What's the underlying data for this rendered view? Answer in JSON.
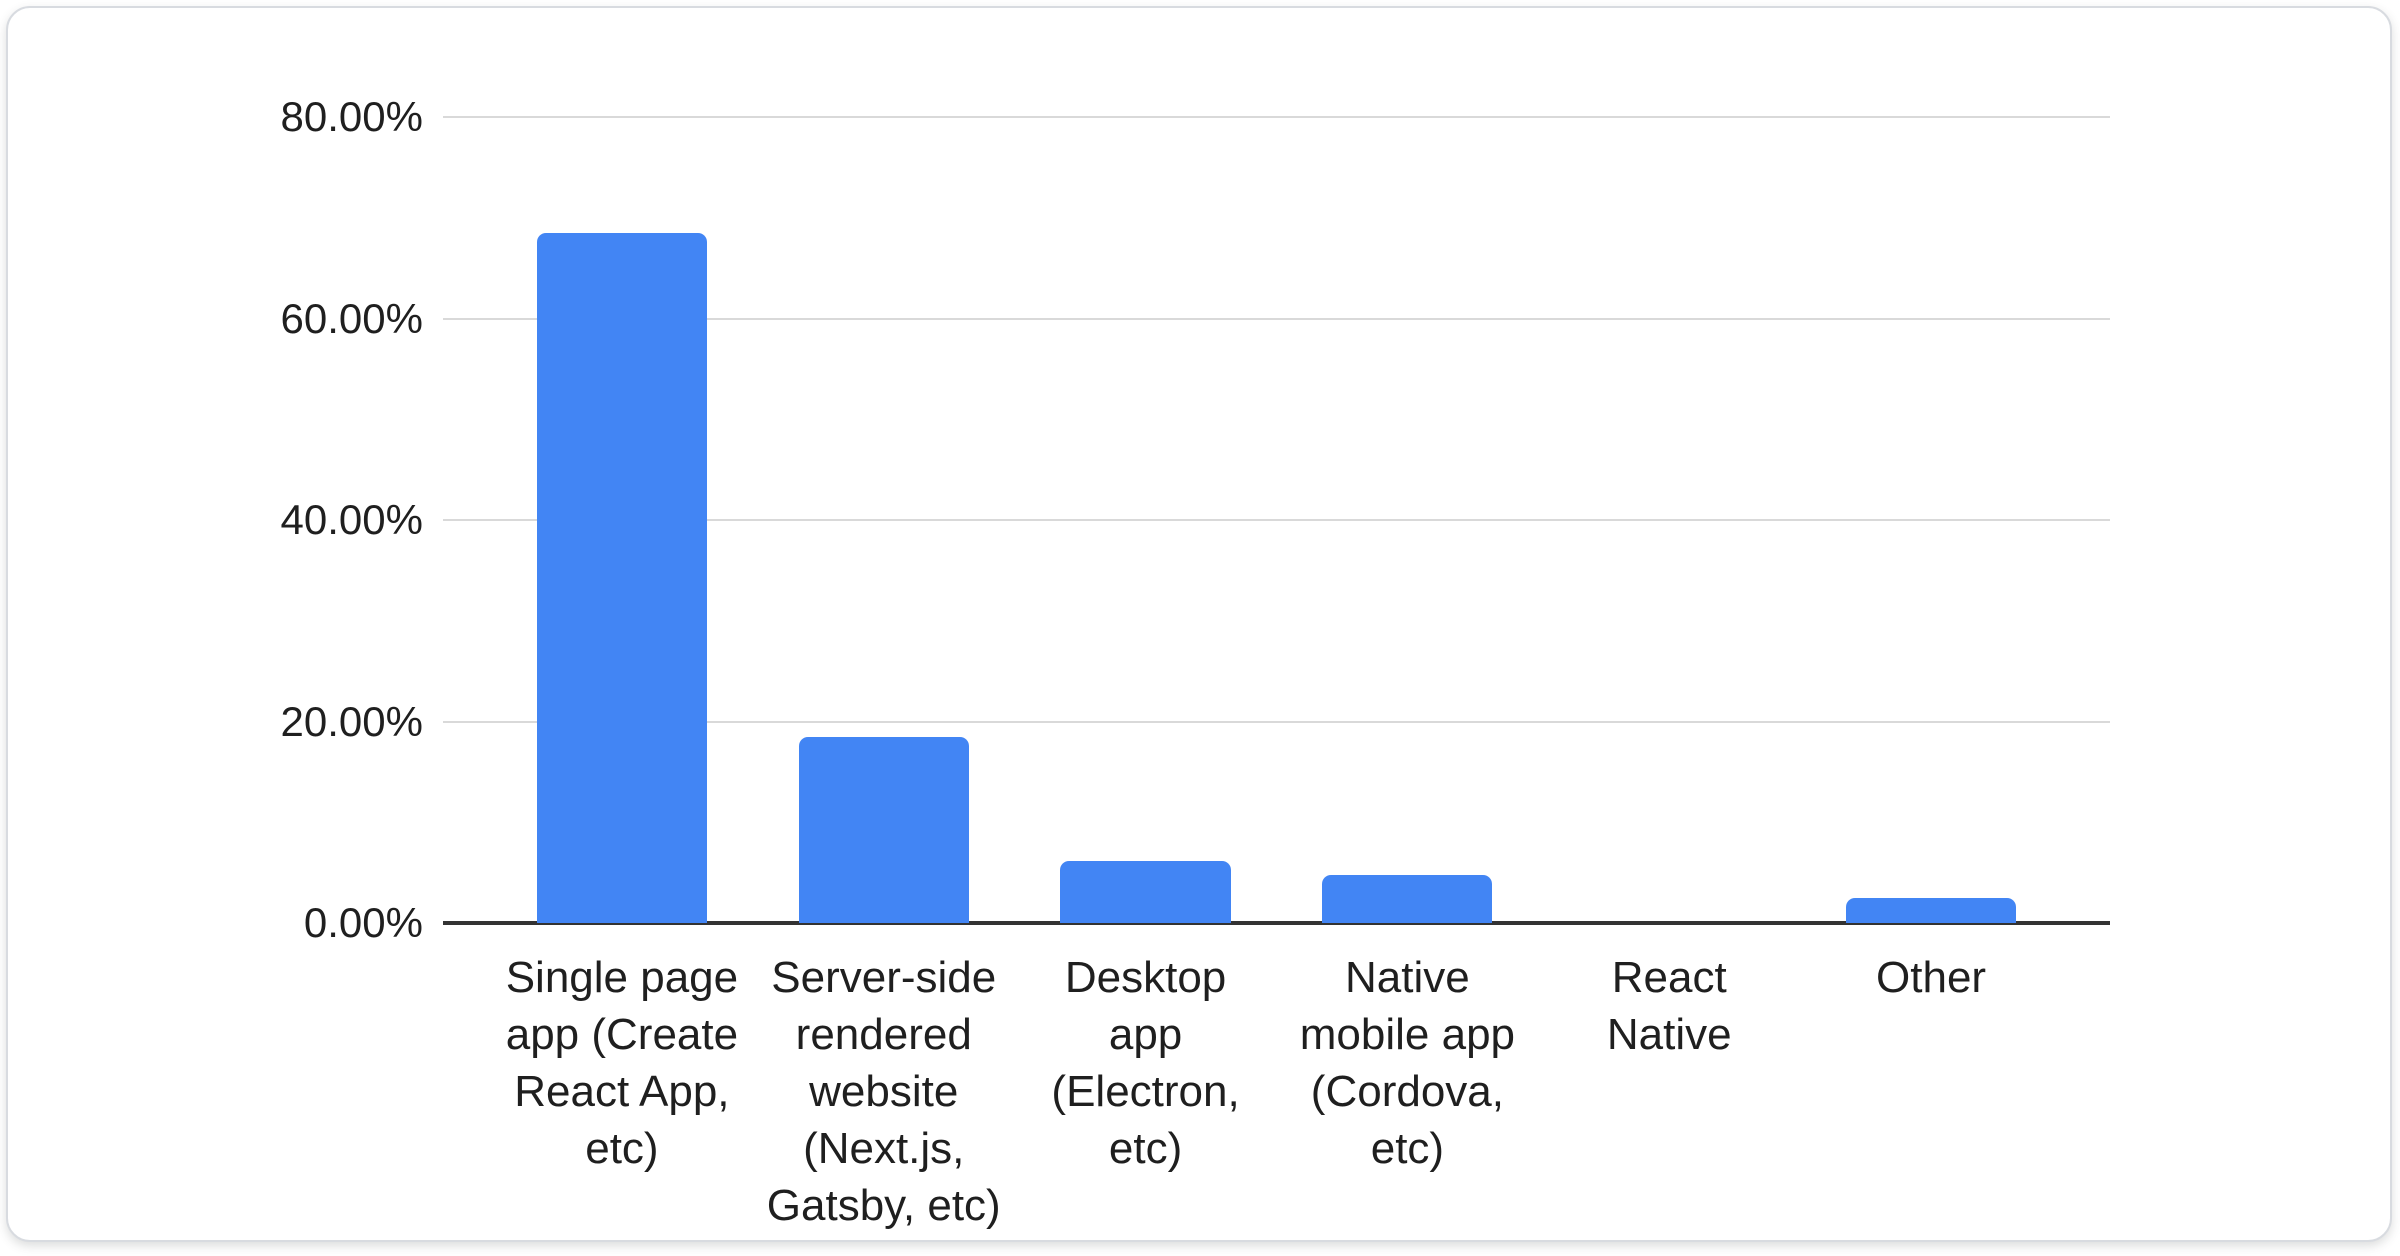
{
  "chart_data": {
    "type": "bar",
    "title": "",
    "xlabel": "",
    "ylabel": "",
    "categories": [
      "Single page app (Create React App, etc)",
      "Server-side rendered website (Next.js, Gatsby, etc)",
      "Desktop app (Electron, etc)",
      "Native mobile app (Cordova, etc)",
      "React Native",
      "Other"
    ],
    "category_label_lines": [
      "Single page\napp (Create\nReact App,\netc)",
      "Server-side\nrendered\nwebsite\n(Next.js,\nGatsby, etc)",
      "Desktop\napp\n(Electron,\netc)",
      "Native\nmobile app\n(Cordova,\netc)",
      "React\nNative",
      "Other"
    ],
    "values": [
      68.5,
      18.5,
      6.2,
      4.8,
      0,
      2.5
    ],
    "value_unit": "percent",
    "ylim": [
      0,
      80
    ],
    "y_ticks": [
      {
        "value": 80,
        "label": "80.00%"
      },
      {
        "value": 60,
        "label": "60.00%"
      },
      {
        "value": 40,
        "label": "40.00%"
      },
      {
        "value": 20,
        "label": "20.00%"
      },
      {
        "value": 0,
        "label": "0.00%"
      }
    ],
    "grid": true,
    "legend": "none",
    "bar_color": "#4285f4"
  },
  "colors": {
    "bar": "#4285f4",
    "grid": "#d9d9d9",
    "axis": "#333333",
    "text": "#1f1f1f",
    "card_bg": "#ffffff",
    "card_border": "#d8dbe0",
    "page_bg": "#ffffff"
  }
}
